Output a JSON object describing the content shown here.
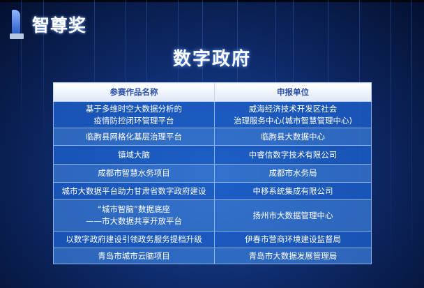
{
  "logo": {
    "text": "智尊奖"
  },
  "title": "数字政府",
  "table": {
    "headers": [
      "参赛作品名称",
      "申报单位"
    ],
    "rows": [
      {
        "name": [
          "基于多维时空大数据分析的",
          "疫情防控闭环管理平台"
        ],
        "unit": [
          "威海经济技术开发区社会",
          "治理服务中心(城市智慧管理中心)"
        ]
      },
      {
        "name": [
          "临朐县网格化基层治理平台"
        ],
        "unit": [
          "临朐县大数据中心"
        ]
      },
      {
        "name": [
          "镇域大脑"
        ],
        "unit": [
          "中睿信数字技术有限公司"
        ]
      },
      {
        "name": [
          "成都市智慧水务项目"
        ],
        "unit": [
          "成都市水务局"
        ]
      },
      {
        "name": [
          "城市大数据平台助力甘肃省数字政府建设"
        ],
        "unit": [
          "中移系统集成有限公司"
        ]
      },
      {
        "name": [
          "“城市智脑”数据底座",
          "——市大数据共享开放平台"
        ],
        "unit": [
          "扬州市大数据管理中心"
        ]
      },
      {
        "name": [
          "以数字政府建设引领政务服务提档升级"
        ],
        "unit": [
          "伊春市营商环境建设监督局"
        ]
      },
      {
        "name": [
          "青岛市城市云脑项目"
        ],
        "unit": [
          "青岛市大数据发展管理局"
        ]
      }
    ]
  }
}
